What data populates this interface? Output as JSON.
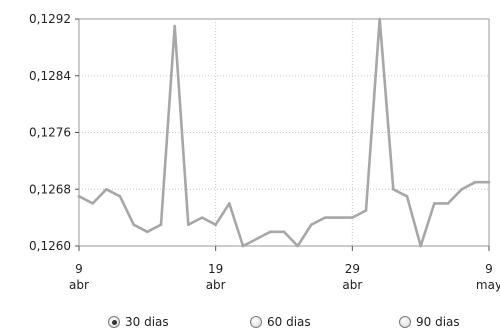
{
  "chart_data": {
    "type": "line",
    "title": "",
    "xlabel": "",
    "ylabel": "",
    "x_ticks": [
      {
        "day": 0,
        "line1": "9",
        "line2": "abr"
      },
      {
        "day": 10,
        "line1": "19",
        "line2": "abr"
      },
      {
        "day": 20,
        "line1": "29",
        "line2": "abr"
      },
      {
        "day": 30,
        "line1": "9",
        "line2": "may"
      }
    ],
    "y_ticks": [
      "0,1260",
      "0,1268",
      "0,1276",
      "0,1284",
      "0,1292"
    ],
    "ylim": [
      0.126,
      0.1292
    ],
    "xlim": [
      0,
      30
    ],
    "grid": true,
    "line_color": "#a7a7a7",
    "grid_color": "#c8c8c8",
    "series": [
      {
        "x": [
          0,
          1,
          2,
          3,
          4,
          5,
          6,
          7,
          8,
          9,
          10,
          11,
          12,
          13,
          14,
          15,
          16,
          17,
          18,
          19,
          20,
          21,
          22,
          23,
          24,
          25,
          26,
          27,
          28,
          29,
          30
        ],
        "values": [
          0.1267,
          0.1266,
          0.1268,
          0.1267,
          0.1263,
          0.1262,
          0.1263,
          0.1291,
          0.1263,
          0.1264,
          0.1263,
          0.1266,
          0.126,
          0.1261,
          0.1262,
          0.1262,
          0.126,
          0.1263,
          0.1264,
          0.1264,
          0.1264,
          0.1265,
          0.1292,
          0.1268,
          0.1267,
          0.126,
          0.1266,
          0.1266,
          0.1268,
          0.1269,
          0.1269
        ]
      }
    ]
  },
  "range_options": [
    {
      "label": "30 dias",
      "selected": true
    },
    {
      "label": "60 dias",
      "selected": false
    },
    {
      "label": "90 dias",
      "selected": false
    }
  ]
}
